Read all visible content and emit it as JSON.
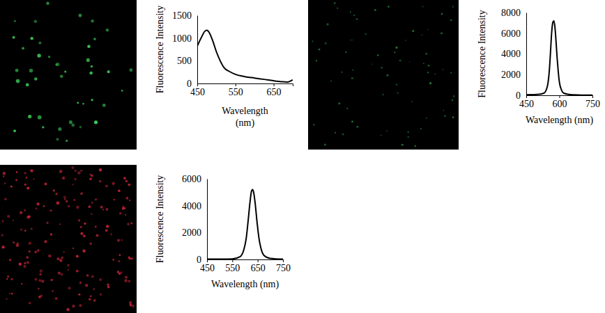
{
  "chart_data": [
    {
      "type": "line",
      "x_label": "Wavelength (nm)",
      "y_label": "Fluorescence Intensity",
      "x": [
        450,
        460,
        470,
        475,
        480,
        490,
        500,
        510,
        520,
        535,
        550,
        575,
        600,
        625,
        650,
        670,
        685,
        700
      ],
      "values": [
        820,
        1000,
        1150,
        1170,
        1140,
        950,
        700,
        500,
        350,
        260,
        200,
        150,
        120,
        90,
        60,
        40,
        30,
        80
      ],
      "color": "#000000",
      "xlim": [
        450,
        700
      ],
      "xticks": [
        450,
        550,
        650
      ],
      "ylim": [
        0,
        1500
      ],
      "yticks": [
        0,
        500,
        1000,
        1500
      ]
    },
    {
      "type": "line",
      "x_label": "Wavelength (nm)",
      "y_label": "Fluorescence Intensity",
      "x": [
        450,
        500,
        530,
        545,
        555,
        560,
        565,
        570,
        575,
        580,
        585,
        590,
        595,
        600,
        610,
        620,
        650,
        700,
        750
      ],
      "values": [
        50,
        80,
        200,
        800,
        2500,
        4200,
        6000,
        7000,
        7200,
        6600,
        5200,
        3600,
        2300,
        1300,
        500,
        200,
        60,
        20,
        10
      ],
      "color": "#000000",
      "xlim": [
        450,
        750
      ],
      "xticks": [
        450,
        600,
        750
      ],
      "ylim": [
        0,
        8000
      ],
      "yticks": [
        0,
        2000,
        4000,
        6000,
        8000
      ]
    },
    {
      "type": "line",
      "x_label": "Wavelength (nm)",
      "y_label": "Fluorescence Intensity",
      "x": [
        450,
        500,
        550,
        580,
        595,
        605,
        612,
        620,
        626,
        630,
        634,
        640,
        648,
        655,
        662,
        675,
        700,
        750
      ],
      "values": [
        20,
        25,
        40,
        200,
        700,
        1600,
        2800,
        4300,
        5100,
        5200,
        5000,
        4200,
        2700,
        1600,
        900,
        300,
        80,
        20
      ],
      "color": "#000000",
      "xlim": [
        450,
        750
      ],
      "xticks": [
        450,
        550,
        650,
        750
      ],
      "ylim": [
        0,
        6000
      ],
      "yticks": [
        0,
        2000,
        4000,
        6000
      ]
    }
  ]
}
